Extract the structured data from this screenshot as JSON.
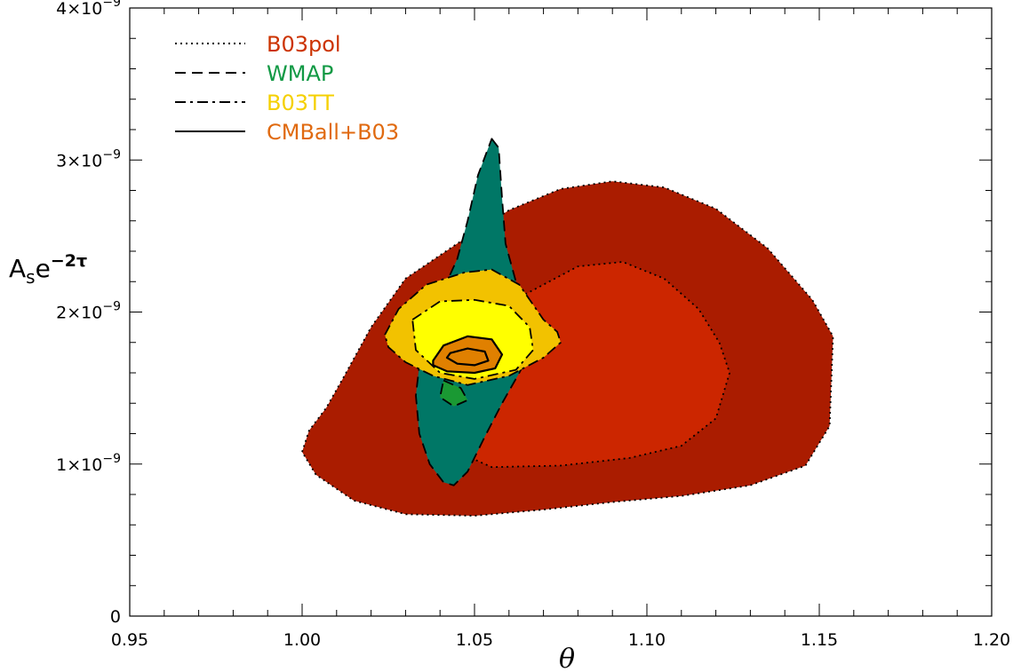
{
  "chart_data": {
    "type": "contour",
    "xlabel": "θ",
    "ylabel": {
      "base": "A",
      "sub": "s",
      "mid": "e",
      "sup": "−2τ"
    },
    "xlim": [
      0.95,
      1.2
    ],
    "ylim": [
      0,
      4e-09
    ],
    "x_ticks": [
      {
        "value": 0.95,
        "label": "0.95"
      },
      {
        "value": 1.0,
        "label": "1.00"
      },
      {
        "value": 1.05,
        "label": "1.05"
      },
      {
        "value": 1.1,
        "label": "1.10"
      },
      {
        "value": 1.15,
        "label": "1.15"
      },
      {
        "value": 1.2,
        "label": "1.20"
      }
    ],
    "y_ticks": [
      {
        "value": 0,
        "label": "0",
        "exp": ""
      },
      {
        "value": 1e-09,
        "label": "1×10",
        "exp": "−9"
      },
      {
        "value": 2e-09,
        "label": "2×10",
        "exp": "−9"
      },
      {
        "value": 3e-09,
        "label": "3×10",
        "exp": "−9"
      },
      {
        "value": 4e-09,
        "label": "4×10",
        "exp": "−9"
      }
    ],
    "grid": false,
    "legend_position": "top-left",
    "legend": [
      {
        "label": "B03pol",
        "line_style": "dotted",
        "color": "#cc3300"
      },
      {
        "label": "WMAP",
        "line_style": "dashed",
        "color": "#119944"
      },
      {
        "label": "B03TT",
        "line_style": "dash-dot",
        "color": "#f5d000"
      },
      {
        "label": "CMBall+B03",
        "line_style": "solid",
        "color": "#e06a10"
      }
    ],
    "regions": [
      {
        "series": "B03pol",
        "level": "95%",
        "fill": "#aa1c00",
        "line_style": "dotted",
        "points": [
          [
            1.0,
            1.08e-09
          ],
          [
            1.002,
            1.22e-09
          ],
          [
            1.007,
            1.37e-09
          ],
          [
            1.012,
            1.57e-09
          ],
          [
            1.02,
            1.9e-09
          ],
          [
            1.03,
            2.22e-09
          ],
          [
            1.045,
            2.45e-09
          ],
          [
            1.06,
            2.67e-09
          ],
          [
            1.075,
            2.81e-09
          ],
          [
            1.09,
            2.86e-09
          ],
          [
            1.105,
            2.82e-09
          ],
          [
            1.12,
            2.68e-09
          ],
          [
            1.135,
            2.42e-09
          ],
          [
            1.148,
            2.08e-09
          ],
          [
            1.154,
            1.84e-09
          ],
          [
            1.153,
            1.25e-09
          ],
          [
            1.146,
            9.9e-10
          ],
          [
            1.13,
            8.6e-10
          ],
          [
            1.11,
            7.9e-10
          ],
          [
            1.09,
            7.5e-10
          ],
          [
            1.07,
            7e-10
          ],
          [
            1.05,
            6.6e-10
          ],
          [
            1.03,
            6.7e-10
          ],
          [
            1.015,
            7.6e-10
          ],
          [
            1.004,
            9.3e-10
          ]
        ]
      },
      {
        "series": "B03pol",
        "level": "68%",
        "fill": "#cc2600",
        "line_style": "dotted",
        "points": [
          [
            1.035,
            1.35e-09
          ],
          [
            1.04,
            1.65e-09
          ],
          [
            1.05,
            1.85e-09
          ],
          [
            1.065,
            2.12e-09
          ],
          [
            1.08,
            2.3e-09
          ],
          [
            1.093,
            2.33e-09
          ],
          [
            1.105,
            2.22e-09
          ],
          [
            1.115,
            2.02e-09
          ],
          [
            1.121,
            1.8e-09
          ],
          [
            1.124,
            1.6e-09
          ],
          [
            1.12,
            1.3e-09
          ],
          [
            1.11,
            1.12e-09
          ],
          [
            1.095,
            1.04e-09
          ],
          [
            1.075,
            9.9e-10
          ],
          [
            1.055,
            9.8e-10
          ],
          [
            1.043,
            1.1e-09
          ],
          [
            1.036,
            1.22e-09
          ]
        ]
      },
      {
        "series": "WMAP",
        "level": "95%",
        "fill": "#007766",
        "line_style": "dashed",
        "points": [
          [
            1.055,
            3.14e-09
          ],
          [
            1.057,
            3.08e-09
          ],
          [
            1.058,
            2.75e-09
          ],
          [
            1.059,
            2.45e-09
          ],
          [
            1.062,
            2.2e-09
          ],
          [
            1.066,
            2e-09
          ],
          [
            1.068,
            1.82e-09
          ],
          [
            1.063,
            1.6e-09
          ],
          [
            1.058,
            1.4e-09
          ],
          [
            1.053,
            1.18e-09
          ],
          [
            1.048,
            9.5e-10
          ],
          [
            1.044,
            8.6e-10
          ],
          [
            1.041,
            8.8e-10
          ],
          [
            1.037,
            1e-09
          ],
          [
            1.034,
            1.2e-09
          ],
          [
            1.033,
            1.45e-09
          ],
          [
            1.034,
            1.65e-09
          ],
          [
            1.037,
            1.95e-09
          ],
          [
            1.041,
            2.15e-09
          ],
          [
            1.045,
            2.35e-09
          ],
          [
            1.048,
            2.6e-09
          ],
          [
            1.051,
            2.9e-09
          ]
        ]
      },
      {
        "series": "WMAP",
        "level": "68%",
        "fill": "#1a9933",
        "line_style": "dashed",
        "points": [
          [
            1.041,
            1.55e-09
          ],
          [
            1.046,
            1.5e-09
          ],
          [
            1.048,
            1.42e-09
          ],
          [
            1.044,
            1.38e-09
          ],
          [
            1.04,
            1.44e-09
          ]
        ]
      },
      {
        "series": "B03TT",
        "level": "95%",
        "fill": "#f2c200",
        "line_style": "dash-dot",
        "points": [
          [
            1.024,
            1.85e-09
          ],
          [
            1.028,
            2.02e-09
          ],
          [
            1.036,
            2.18e-09
          ],
          [
            1.047,
            2.26e-09
          ],
          [
            1.055,
            2.28e-09
          ],
          [
            1.063,
            2.18e-09
          ],
          [
            1.07,
            1.95e-09
          ],
          [
            1.074,
            1.87e-09
          ],
          [
            1.075,
            1.8e-09
          ],
          [
            1.07,
            1.7e-09
          ],
          [
            1.06,
            1.58e-09
          ],
          [
            1.048,
            1.52e-09
          ],
          [
            1.038,
            1.58e-09
          ],
          [
            1.03,
            1.67e-09
          ],
          [
            1.025,
            1.77e-09
          ]
        ]
      },
      {
        "series": "B03TT",
        "level": "68%",
        "fill": "#ffff00",
        "line_style": "dash-dot",
        "points": [
          [
            1.032,
            1.95e-09
          ],
          [
            1.04,
            2.07e-09
          ],
          [
            1.05,
            2.08e-09
          ],
          [
            1.06,
            2.04e-09
          ],
          [
            1.066,
            1.9e-09
          ],
          [
            1.067,
            1.75e-09
          ],
          [
            1.062,
            1.62e-09
          ],
          [
            1.05,
            1.56e-09
          ],
          [
            1.04,
            1.6e-09
          ],
          [
            1.033,
            1.75e-09
          ]
        ]
      },
      {
        "series": "CMBall+B03",
        "level": "95%",
        "fill": "#e08000",
        "line_style": "solid",
        "points": [
          [
            1.038,
            1.68e-09
          ],
          [
            1.041,
            1.78e-09
          ],
          [
            1.048,
            1.84e-09
          ],
          [
            1.055,
            1.82e-09
          ],
          [
            1.058,
            1.72e-09
          ],
          [
            1.056,
            1.63e-09
          ],
          [
            1.05,
            1.6e-09
          ],
          [
            1.042,
            1.61e-09
          ],
          [
            1.038,
            1.65e-09
          ]
        ]
      },
      {
        "series": "CMBall+B03",
        "level": "68%",
        "fill": "#e08000",
        "line_style": "solid",
        "points": [
          [
            1.043,
            1.73e-09
          ],
          [
            1.048,
            1.76e-09
          ],
          [
            1.053,
            1.74e-09
          ],
          [
            1.054,
            1.68e-09
          ],
          [
            1.05,
            1.65e-09
          ],
          [
            1.045,
            1.66e-09
          ],
          [
            1.042,
            1.7e-09
          ]
        ]
      }
    ]
  }
}
